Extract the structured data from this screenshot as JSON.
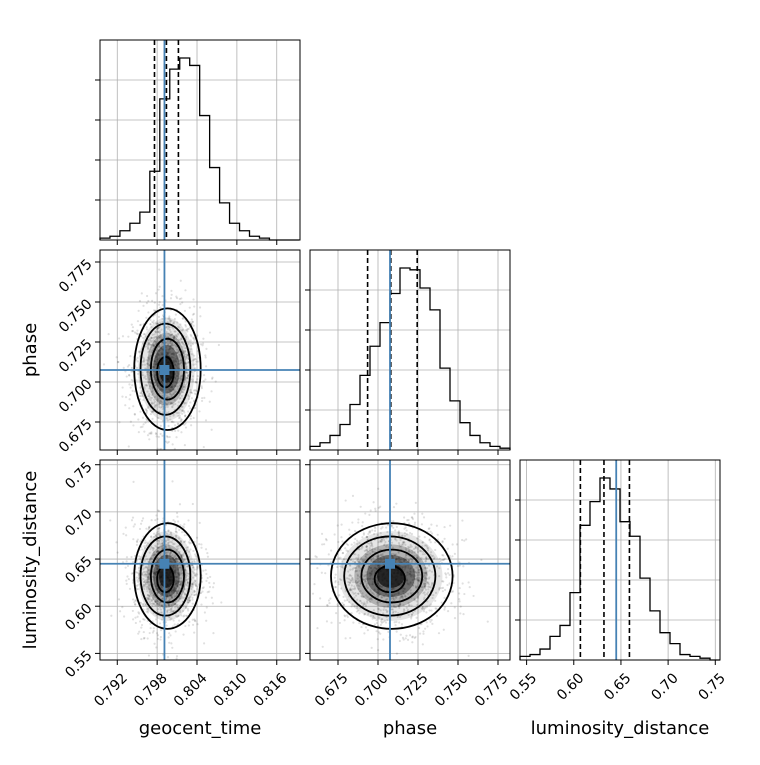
{
  "chart_data": {
    "type": "corner",
    "parameters": [
      {
        "name": "geocent_time",
        "label": "geocent_time",
        "truth": 0.7991,
        "quantiles": [
          0.7976,
          0.7994,
          0.8012
        ],
        "range": [
          0.7894,
          0.8195
        ],
        "ticks": [
          0.792,
          0.798,
          0.804,
          0.81,
          0.816
        ],
        "tick_labels": [
          "0.792",
          "0.798",
          "0.804",
          "0.810",
          "0.816"
        ],
        "hist_edges_start": 0.7894,
        "hist_bin": 0.0015,
        "hist": [
          1,
          2,
          5,
          9,
          15,
          37,
          76,
          92,
          98,
          94,
          67,
          39,
          20,
          9,
          5,
          2,
          1,
          0,
          0,
          0
        ]
      },
      {
        "name": "phase",
        "label": "phase",
        "truth": 0.7075,
        "quantiles": [
          0.6935,
          0.708,
          0.7245
        ],
        "range": [
          0.6575,
          0.7825
        ],
        "ticks": [
          0.675,
          0.7,
          0.725,
          0.75,
          0.775
        ],
        "tick_labels": [
          "0.675",
          "0.700",
          "0.725",
          "0.750",
          "0.775"
        ],
        "hist_edges_start": 0.6575,
        "hist_bin": 0.00625,
        "hist": [
          2,
          4,
          8,
          14,
          25,
          41,
          57,
          70,
          86,
          100,
          99,
          89,
          77,
          45,
          27,
          15,
          8,
          4,
          2,
          1
        ]
      },
      {
        "name": "luminosity_distance",
        "label": "luminosity_distance",
        "truth": 0.645,
        "quantiles": [
          0.607,
          0.632,
          0.659
        ],
        "range": [
          0.543,
          0.755
        ],
        "ticks": [
          0.55,
          0.6,
          0.65,
          0.7,
          0.75
        ],
        "tick_labels": [
          "0.55",
          "0.60",
          "0.65",
          "0.70",
          "0.75"
        ],
        "hist_edges_start": 0.543,
        "hist_bin": 0.0106,
        "hist": [
          2,
          3,
          6,
          13,
          19,
          37,
          74,
          87,
          100,
          94,
          76,
          68,
          45,
          27,
          15,
          9,
          3,
          2,
          1,
          0
        ]
      }
    ],
    "row_tick_labels": {
      "phase": [
        "0.675",
        "0.700",
        "0.725",
        "0.750",
        "0.775"
      ],
      "luminosity_distance": [
        "0.55",
        "0.60",
        "0.65",
        "0.70",
        "0.75"
      ]
    },
    "centers": {
      "geocent_time": 0.7994,
      "phase": 0.708,
      "luminosity_distance": 0.632
    },
    "spreads": {
      "geocent_time": 0.0025,
      "phase": 0.019,
      "luminosity_distance": 0.028
    },
    "contour_levels_sigma": [
      0.5,
      1.0,
      1.5,
      2.0
    ],
    "grid": true,
    "colors": {
      "truth": "#4682b4",
      "hist": "#000000",
      "contour": "#000000",
      "scatter": "#000000",
      "grid": "#b0b0b0"
    }
  }
}
